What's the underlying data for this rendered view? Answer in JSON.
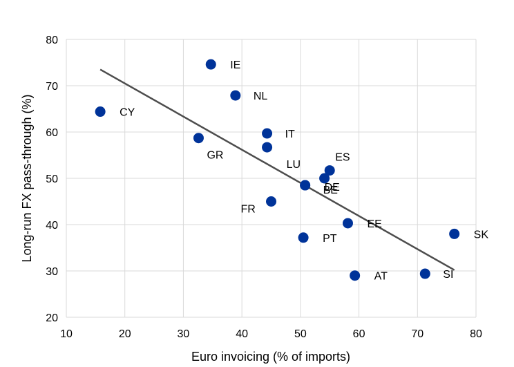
{
  "chart_data": {
    "type": "scatter",
    "xlabel": "Euro invoicing (% of imports)",
    "ylabel": "Long-run FX pass-through (%)",
    "xlim": [
      10,
      80
    ],
    "ylim": [
      20,
      80
    ],
    "x_ticks": [
      10,
      20,
      30,
      40,
      50,
      60,
      70,
      80
    ],
    "y_ticks": [
      20,
      30,
      40,
      50,
      60,
      70,
      80
    ],
    "grid": true,
    "marker_color": "#003399",
    "trendline_color": "#4d4d4d",
    "trendline": {
      "x": [
        15.8,
        76.3
      ],
      "y": [
        73.5,
        30.2
      ]
    },
    "points": [
      {
        "label": "IE",
        "x": 34.7,
        "y": 74.6
      },
      {
        "label": "NL",
        "x": 38.9,
        "y": 67.9
      },
      {
        "label": "CY",
        "x": 15.8,
        "y": 64.4
      },
      {
        "label": "IT",
        "x": 44.3,
        "y": 59.7
      },
      {
        "label": "GR",
        "x": 32.6,
        "y": 58.7
      },
      {
        "label": "LU",
        "x": 44.3,
        "y": 56.7
      },
      {
        "label": "ES",
        "x": 55.0,
        "y": 51.7
      },
      {
        "label": "DE",
        "x": 54.1,
        "y": 50.0
      },
      {
        "label": "",
        "x": 50.8,
        "y": 48.5
      },
      {
        "label": "FR",
        "x": 45.0,
        "y": 45.0
      },
      {
        "label": "BE",
        "x": 50.8,
        "y": 48.5
      },
      {
        "label": "EE",
        "x": 58.1,
        "y": 40.3
      },
      {
        "label": "PT",
        "x": 50.5,
        "y": 37.2
      },
      {
        "label": "SK",
        "x": 76.3,
        "y": 38.0
      },
      {
        "label": "SI",
        "x": 71.3,
        "y": 29.4
      },
      {
        "label": "AT",
        "x": 59.3,
        "y": 29.0
      }
    ]
  }
}
